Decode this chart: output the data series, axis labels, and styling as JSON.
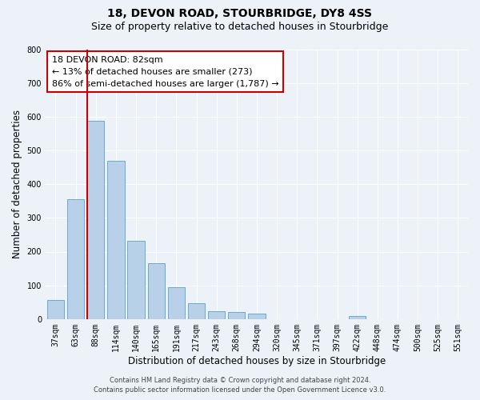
{
  "title": "18, DEVON ROAD, STOURBRIDGE, DY8 4SS",
  "subtitle": "Size of property relative to detached houses in Stourbridge",
  "xlabel": "Distribution of detached houses by size in Stourbridge",
  "ylabel": "Number of detached properties",
  "bar_labels": [
    "37sqm",
    "63sqm",
    "88sqm",
    "114sqm",
    "140sqm",
    "165sqm",
    "191sqm",
    "217sqm",
    "243sqm",
    "268sqm",
    "294sqm",
    "320sqm",
    "345sqm",
    "371sqm",
    "397sqm",
    "422sqm",
    "448sqm",
    "474sqm",
    "500sqm",
    "525sqm",
    "551sqm"
  ],
  "bar_values": [
    57,
    355,
    588,
    468,
    232,
    165,
    94,
    46,
    24,
    20,
    16,
    0,
    0,
    0,
    0,
    10,
    0,
    0,
    0,
    0,
    0
  ],
  "bar_color": "#b8d0e8",
  "bar_edge_color": "#6aaad4",
  "property_line_color": "#cc0000",
  "property_line_bar_index": 2,
  "annotation_box_text": "18 DEVON ROAD: 82sqm\n← 13% of detached houses are smaller (273)\n86% of semi-detached houses are larger (1,787) →",
  "annotation_box_edgecolor": "#cc0000",
  "ylim": [
    0,
    800
  ],
  "yticks": [
    0,
    100,
    200,
    300,
    400,
    500,
    600,
    700,
    800
  ],
  "footer_line1": "Contains HM Land Registry data © Crown copyright and database right 2024.",
  "footer_line2": "Contains public sector information licensed under the Open Government Licence v3.0.",
  "bg_color": "#edf2f9",
  "grid_color": "#ffffff",
  "title_fontsize": 10,
  "subtitle_fontsize": 9,
  "axis_label_fontsize": 8.5,
  "tick_fontsize": 7,
  "annotation_fontsize": 8,
  "footer_fontsize": 6
}
